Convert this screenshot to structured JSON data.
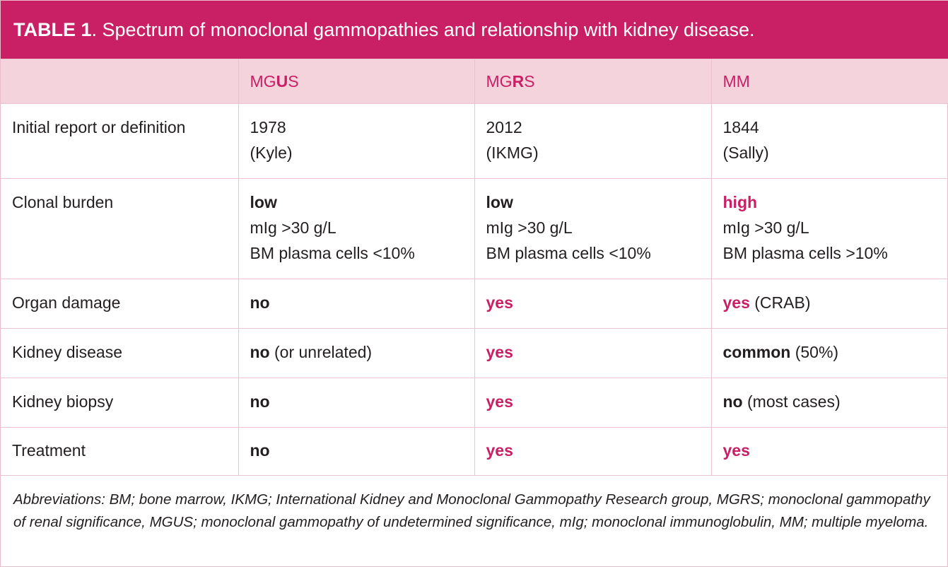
{
  "title": {
    "number": "TABLE 1",
    "separator": ". ",
    "description": "Spectrum of monoclonal gammopathies and relationship with kidney disease."
  },
  "columns": {
    "mgus": {
      "pre": "MG",
      "bold": "U",
      "post": "S"
    },
    "mgrs": {
      "pre": "MG",
      "bold": "R",
      "post": "S"
    },
    "mm": {
      "label": "MM"
    }
  },
  "rows": {
    "initial": {
      "label": "Initial report or definition",
      "mgus": [
        "1978",
        "(Kyle)"
      ],
      "mgrs": [
        "2012",
        "(IKMG)"
      ],
      "mm": [
        "1844",
        "(Sally)"
      ]
    },
    "clonal": {
      "label": "Clonal burden",
      "mgus": {
        "level": "low",
        "line2": "mIg >30 g/L",
        "line3": "BM plasma cells <10%"
      },
      "mgrs": {
        "level": "low",
        "line2": "mIg >30 g/L",
        "line3": "BM plasma cells <10%"
      },
      "mm": {
        "level": "high",
        "line2": "mIg >30 g/L",
        "line3": "BM plasma cells >10%"
      }
    },
    "organ": {
      "label": "Organ damage",
      "mgus": {
        "value": "no",
        "note": ""
      },
      "mgrs": {
        "value": "yes",
        "note": ""
      },
      "mm": {
        "value": "yes",
        "note": " (CRAB)"
      }
    },
    "kidney": {
      "label": "Kidney disease",
      "mgus": {
        "value": "no",
        "note": " (or unrelated)"
      },
      "mgrs": {
        "value": "yes",
        "note": ""
      },
      "mm": {
        "value": "common",
        "note": " (50%)"
      }
    },
    "biopsy": {
      "label": "Kidney biopsy",
      "mgus": {
        "value": "no",
        "note": ""
      },
      "mgrs": {
        "value": "yes",
        "note": ""
      },
      "mm": {
        "value": "no",
        "note": " (most cases)"
      }
    },
    "treatment": {
      "label": "Treatment",
      "mgus": {
        "value": "no",
        "note": ""
      },
      "mgrs": {
        "value": "yes",
        "note": ""
      },
      "mm": {
        "value": "yes",
        "note": ""
      }
    }
  },
  "footnote": "Abbreviations: BM; bone marrow, IKMG; International Kidney and Monoclonal Gammopathy Research group, MGRS; monoclonal gammopathy of renal significance, MGUS; monoclonal gammopathy of undetermined significance, mIg; monoclonal immunoglobulin, MM; multiple myeloma.",
  "colors": {
    "accent": "#c81f65",
    "header_band": "#f4d3dc",
    "grid": "#ebc3d0",
    "text": "#231f20"
  }
}
